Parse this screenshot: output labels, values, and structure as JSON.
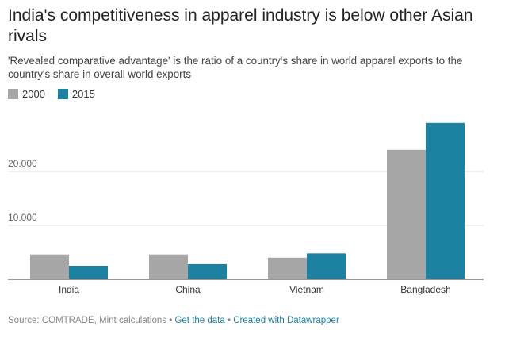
{
  "title": "India's competitiveness in apparel industry is below other Asian rivals",
  "subtitle": "'Revealed comparative advantage' is the ratio of a country's share in world apparel exports to the country's share in overall world exports",
  "colors": {
    "2000": "#a6a6a6",
    "2015": "#1d81a2"
  },
  "footer": {
    "source": "Source: COMTRADE, Mint calculations",
    "sep1": " • ",
    "get_data": "Get the data",
    "sep2": " • ",
    "created_with": "Created with Datawrapper"
  },
  "chart_data": {
    "type": "bar",
    "categories": [
      "India",
      "China",
      "Vietnam",
      "Bangladesh"
    ],
    "series": [
      {
        "name": "2000",
        "values": [
          4.6,
          4.6,
          4.0,
          24.0
        ]
      },
      {
        "name": "2015",
        "values": [
          2.5,
          2.8,
          4.8,
          29.0
        ]
      }
    ],
    "y_ticks": [
      10.0,
      20.0
    ],
    "y_tick_labels": [
      "10.000",
      "20.000"
    ],
    "ylim": [
      0,
      30
    ],
    "grid": true,
    "legend_position": "top-left"
  }
}
